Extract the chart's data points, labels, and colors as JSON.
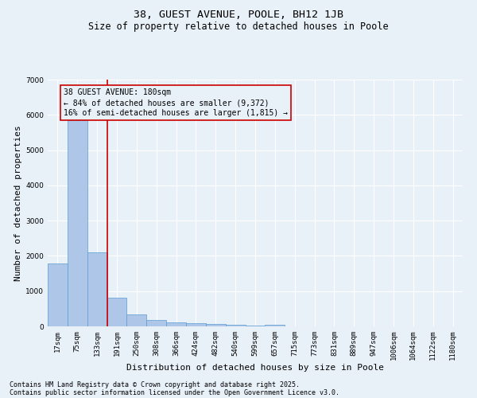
{
  "title1": "38, GUEST AVENUE, POOLE, BH12 1JB",
  "title2": "Size of property relative to detached houses in Poole",
  "xlabel": "Distribution of detached houses by size in Poole",
  "ylabel": "Number of detached properties",
  "categories": [
    "17sqm",
    "75sqm",
    "133sqm",
    "191sqm",
    "250sqm",
    "308sqm",
    "366sqm",
    "424sqm",
    "482sqm",
    "540sqm",
    "599sqm",
    "657sqm",
    "715sqm",
    "773sqm",
    "831sqm",
    "889sqm",
    "947sqm",
    "1006sqm",
    "1064sqm",
    "1122sqm",
    "1180sqm"
  ],
  "values": [
    1780,
    5850,
    2090,
    820,
    340,
    185,
    110,
    90,
    65,
    50,
    25,
    55,
    5,
    3,
    2,
    1,
    1,
    1,
    1,
    1,
    1
  ],
  "bar_color": "#aec6e8",
  "bar_edge_color": "#5b9bd5",
  "vline_x_index": 2.5,
  "vline_color": "#cc0000",
  "annotation_line1": "38 GUEST AVENUE: 180sqm",
  "annotation_line2": "← 84% of detached houses are smaller (9,372)",
  "annotation_line3": "16% of semi-detached houses are larger (1,815) →",
  "ylim": [
    0,
    7000
  ],
  "yticks": [
    0,
    1000,
    2000,
    3000,
    4000,
    5000,
    6000,
    7000
  ],
  "bg_color": "#e8f0f8",
  "grid_color": "#ffffff",
  "footer1": "Contains HM Land Registry data © Crown copyright and database right 2025.",
  "footer2": "Contains public sector information licensed under the Open Government Licence v3.0.",
  "title_fontsize": 9.5,
  "subtitle_fontsize": 8.5,
  "axis_label_fontsize": 8,
  "tick_fontsize": 6.5,
  "annotation_fontsize": 7,
  "footer_fontsize": 6
}
